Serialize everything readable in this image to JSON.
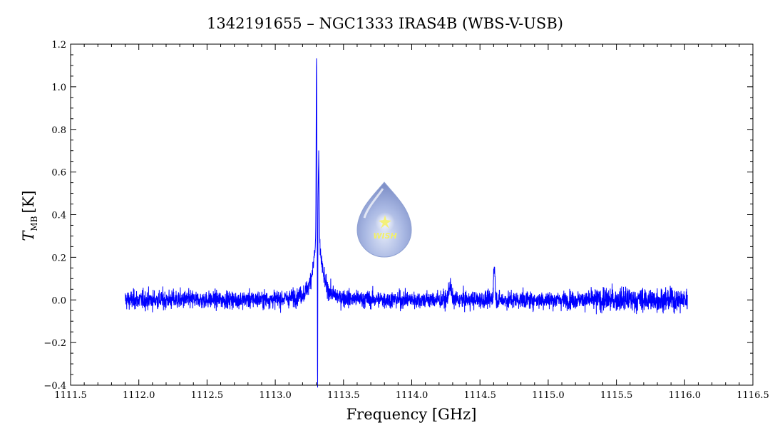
{
  "chart_data": {
    "type": "line",
    "title": "1342191655 – NGC1333 IRAS4B (WBS-V-USB)",
    "xlabel": "Frequency [GHz]",
    "ylabel": {
      "symbol": "T",
      "subscript": "MB",
      "unit": "[K]"
    },
    "xlim": [
      1111.5,
      1116.5
    ],
    "ylim": [
      -0.4,
      1.2
    ],
    "x_ticks": [
      "1111.5",
      "1112.0",
      "1112.5",
      "1113.0",
      "1113.5",
      "1114.0",
      "1114.5",
      "1115.0",
      "1115.5",
      "1116.0",
      "1116.5"
    ],
    "y_ticks": [
      "1.2",
      "1.0",
      "0.8",
      "0.6",
      "0.4",
      "0.2",
      "0.0",
      "−0.2",
      "−0.4"
    ],
    "x_tick_values": [
      1111.5,
      1112.0,
      1112.5,
      1113.0,
      1113.5,
      1114.0,
      1114.5,
      1115.0,
      1115.5,
      1116.0,
      1116.5
    ],
    "y_tick_values": [
      1.2,
      1.0,
      0.8,
      0.6,
      0.4,
      0.2,
      0.0,
      -0.2,
      -0.4
    ],
    "series": [
      {
        "color": "#0000ff",
        "x_range": [
          1111.9,
          1116.02
        ],
        "baseline": 0.0,
        "noise_rms_K": 0.035,
        "features": [
          {
            "center": 1113.302,
            "peak": 1.15,
            "type": "emission"
          },
          {
            "center": 1113.318,
            "peak": 0.66,
            "type": "emission"
          },
          {
            "center": 1113.31,
            "peak": -0.23,
            "type": "absorption"
          },
          {
            "center": 1114.28,
            "peak": 0.12,
            "type": "emission"
          },
          {
            "center": 1114.605,
            "peak": 0.21,
            "type": "emission"
          }
        ]
      }
    ],
    "grid": false,
    "legend": "none"
  },
  "logo": {
    "text": "WISH",
    "icon": "wish-drop-logo"
  }
}
